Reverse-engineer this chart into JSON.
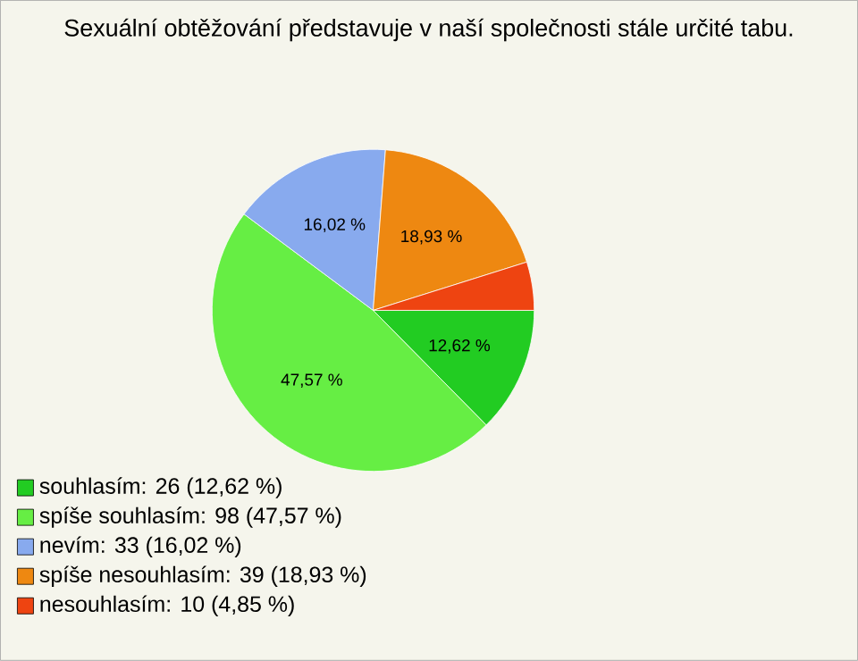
{
  "chart_data": {
    "type": "pie",
    "title": "Sexuální obtěžování představuje v naší společnosti stále určité tabu.",
    "categories": [
      "souhlasím: 26 (12,62 %)",
      "spíše souhlasím: 98 (47,57 %)",
      "nevím: 33 (16,02 %)",
      "spíše nesouhlasím: 39 (18,93 %)",
      "nesouhlasím: 10 (4,85 %)"
    ],
    "values": [
      12.62,
      47.57,
      16.02,
      18.93,
      4.85
    ],
    "value_labels": [
      "12,62 %",
      "47,57 %",
      "16,02 %",
      "18,93 %",
      null
    ],
    "colors": [
      "#22cc22",
      "#66ee44",
      "#88aaee",
      "#ee8811",
      "#ee4411"
    ],
    "legend": "bottom left"
  }
}
